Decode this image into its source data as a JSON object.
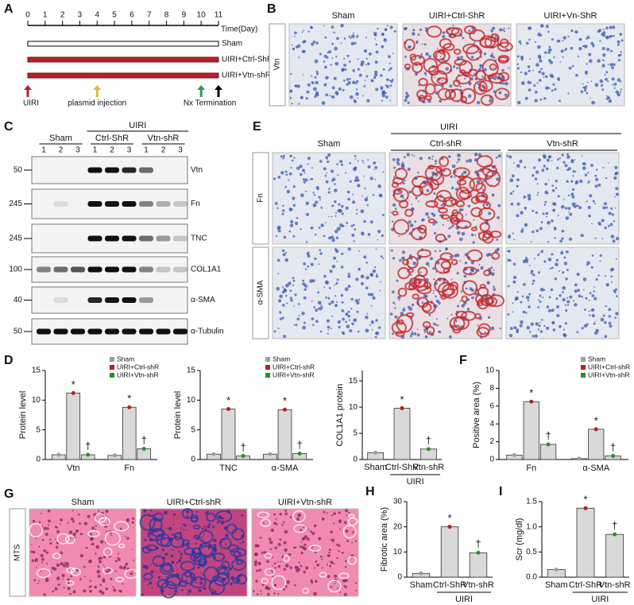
{
  "timeline": {
    "label": "A",
    "days": [
      0,
      1,
      2,
      3,
      4,
      5,
      6,
      7,
      8,
      9,
      10,
      11
    ],
    "axis_label": "Time(Day)",
    "groups": [
      "Sham",
      "UIRI+Ctrl-ShR",
      "UIRI+Vtn-shR"
    ],
    "events": [
      "UIRI",
      "plasmid injection",
      "Nx Termination"
    ]
  },
  "histology_b": {
    "label": "B",
    "columns": [
      "Sham",
      "UIRI+Ctrl-ShR",
      "UIRI+Vn-ShR"
    ],
    "rows": [
      "Vtn"
    ]
  },
  "western": {
    "label": "C",
    "group": "UIRI",
    "subgroups": [
      "Sham",
      "Ctrl-ShR",
      "Vtn-shR"
    ],
    "lanes": [
      "1",
      "2",
      "3"
    ],
    "rows": [
      {
        "mw": 50,
        "protein": "Vtn"
      },
      {
        "mw": 245,
        "protein": "Fn"
      },
      {
        "mw": 245,
        "protein": "TNC"
      },
      {
        "mw": 100,
        "protein": "COL1A1"
      },
      {
        "mw": 40,
        "protein": "α-SMA"
      },
      {
        "mw": 50,
        "protein": "α-Tubulin"
      }
    ]
  },
  "histology_e": {
    "label": "E",
    "group": "UIRI",
    "columns": [
      "Sham",
      "Ctrl-shR",
      "Vtn-shR"
    ],
    "rows": [
      "Fn",
      "α-SMA"
    ]
  },
  "histology_g": {
    "label": "G",
    "columns": [
      "Sham",
      "UIRI+Ctrl-shR",
      "UIRI+Vtn-shR"
    ],
    "rows": [
      "MTS"
    ]
  },
  "chart_data": [
    {
      "panel_label": "D",
      "type": "bar",
      "ylabel": "Protein level",
      "categories": [
        "Vtn",
        "Fn"
      ],
      "bar_color": "#d9d9d9",
      "series": [
        {
          "name": "Sham",
          "color": "#9e9e9e",
          "values": [
            0.8,
            0.7
          ]
        },
        {
          "name": "UIRI+Ctrl-shR",
          "color": "#b22222",
          "values": [
            11.2,
            8.8
          ],
          "marks": [
            "*",
            "*"
          ]
        },
        {
          "name": "UIRI+Vtn-shR",
          "color": "#2e8b2e",
          "values": [
            0.8,
            1.8
          ],
          "marks": [
            "†",
            "†"
          ]
        }
      ],
      "ylim": [
        0,
        15
      ],
      "yticks": [
        0,
        5,
        10,
        15
      ],
      "legend": "top-right"
    },
    {
      "type": "bar",
      "ylabel": "Protein level",
      "categories": [
        "TNC",
        "α-SMA"
      ],
      "bar_color": "#d9d9d9",
      "series": [
        {
          "name": "Sham",
          "color": "#9e9e9e",
          "values": [
            0.9,
            0.9
          ]
        },
        {
          "name": "UIRI+Ctrl-shR",
          "color": "#b22222",
          "values": [
            8.5,
            8.4
          ],
          "marks": [
            "*",
            "*"
          ]
        },
        {
          "name": "UIRI+Vtn-shR",
          "color": "#2e8b2e",
          "values": [
            0.6,
            1.0
          ],
          "marks": [
            "†",
            "†"
          ]
        }
      ],
      "ylim": [
        0,
        15
      ],
      "yticks": [
        0,
        5,
        10,
        15
      ],
      "legend": "top-right"
    },
    {
      "type": "bar",
      "ylabel": "COL1A1 protein",
      "categories": [
        "Sham",
        "Ctrl-ShR",
        "Vtn-shR"
      ],
      "bar_color": "#d9d9d9",
      "values": [
        1.3,
        9.8,
        2.0
      ],
      "colors": [
        "#9e9e9e",
        "#b22222",
        "#2e8b2e"
      ],
      "marks": [
        null,
        "*",
        "†"
      ],
      "ylim": [
        0,
        17
      ],
      "yticks": [
        0,
        5,
        10,
        15
      ],
      "group_label": "UIRI"
    },
    {
      "panel_label": "F",
      "type": "bar",
      "ylabel": "Positive area (%)",
      "categories": [
        "Fn",
        "α-SMA"
      ],
      "bar_color": "#d9d9d9",
      "series": [
        {
          "name": "Sham",
          "color": "#9e9e9e",
          "values": [
            0.5,
            0.1
          ]
        },
        {
          "name": "UIRI+Ctrl-shR",
          "color": "#b22222",
          "values": [
            6.5,
            3.4
          ],
          "marks": [
            "*",
            "*"
          ]
        },
        {
          "name": "UIRI+Vtn-shR",
          "color": "#2e8b2e",
          "values": [
            1.7,
            0.4
          ],
          "marks": [
            "†",
            "†"
          ]
        }
      ],
      "ylim": [
        0,
        10
      ],
      "yticks": [
        0,
        2,
        4,
        6,
        8,
        10
      ],
      "legend": "top-right"
    },
    {
      "panel_label": "H",
      "type": "bar",
      "ylabel": "Fibrotic area (%)",
      "categories": [
        "Sham",
        "Ctrl-ShR",
        "Vtn-shR"
      ],
      "bar_color": "#d9d9d9",
      "values": [
        1.5,
        20.0,
        9.7
      ],
      "colors": [
        "#9e9e9e",
        "#b22222",
        "#2e8b2e"
      ],
      "marks": [
        null,
        "*",
        "†"
      ],
      "ylim": [
        0,
        30
      ],
      "yticks": [
        0,
        10,
        20,
        30
      ],
      "group_label": "UIRI"
    },
    {
      "panel_label": "I",
      "type": "bar",
      "ylabel": "Scr (mg/dl)",
      "categories": [
        "Sham",
        "Ctrl-ShR",
        "Vtn-shR"
      ],
      "bar_color": "#d9d9d9",
      "values": [
        0.15,
        1.37,
        0.85
      ],
      "colors": [
        "#9e9e9e",
        "#b22222",
        "#2e8b2e"
      ],
      "marks": [
        null,
        "*",
        "†"
      ],
      "ylim": [
        0,
        1.5
      ],
      "yticks": [
        {
          "value": 0,
          "label": "0.0"
        },
        0.5,
        {
          "value": 1,
          "label": "1.0"
        },
        1.5
      ],
      "group_label": "UIRI"
    }
  ]
}
